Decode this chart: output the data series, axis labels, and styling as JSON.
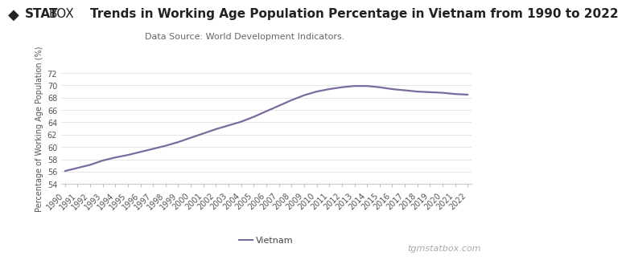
{
  "title": "Trends in Working Age Population Percentage in Vietnam from 1990 to 2022",
  "subtitle": "Data Source: World Development Indicators.",
  "ylabel": "Percentage of Working Age Population (%)",
  "line_color": "#7b6b9d",
  "years": [
    1990,
    1991,
    1992,
    1993,
    1994,
    1995,
    1996,
    1997,
    1998,
    1999,
    2000,
    2001,
    2002,
    2003,
    2004,
    2005,
    2006,
    2007,
    2008,
    2009,
    2010,
    2011,
    2012,
    2013,
    2014,
    2015,
    2016,
    2017,
    2018,
    2019,
    2020,
    2021,
    2022
  ],
  "values": [
    56.1,
    56.6,
    57.1,
    57.8,
    58.3,
    58.7,
    59.2,
    59.7,
    60.2,
    60.8,
    61.5,
    62.2,
    62.9,
    63.5,
    64.1,
    64.9,
    65.8,
    66.7,
    67.6,
    68.4,
    69.0,
    69.4,
    69.7,
    69.9,
    69.9,
    69.7,
    69.4,
    69.2,
    69.0,
    68.9,
    68.8,
    68.6,
    68.5
  ],
  "ylim": [
    54,
    72
  ],
  "yticks": [
    54,
    56,
    58,
    60,
    62,
    64,
    66,
    68,
    70,
    72
  ],
  "legend_label": "Vietnam",
  "background_color": "#ffffff",
  "grid_color": "#e0e0e0",
  "watermark": "tgmstatbox.com",
  "title_fontsize": 11,
  "subtitle_fontsize": 8,
  "axis_label_fontsize": 7,
  "tick_fontsize": 7,
  "legend_fontsize": 8,
  "watermark_fontsize": 8,
  "line_width": 1.6,
  "logo_diamond": "◆",
  "logo_stat": "STAT",
  "logo_box": "BOX"
}
